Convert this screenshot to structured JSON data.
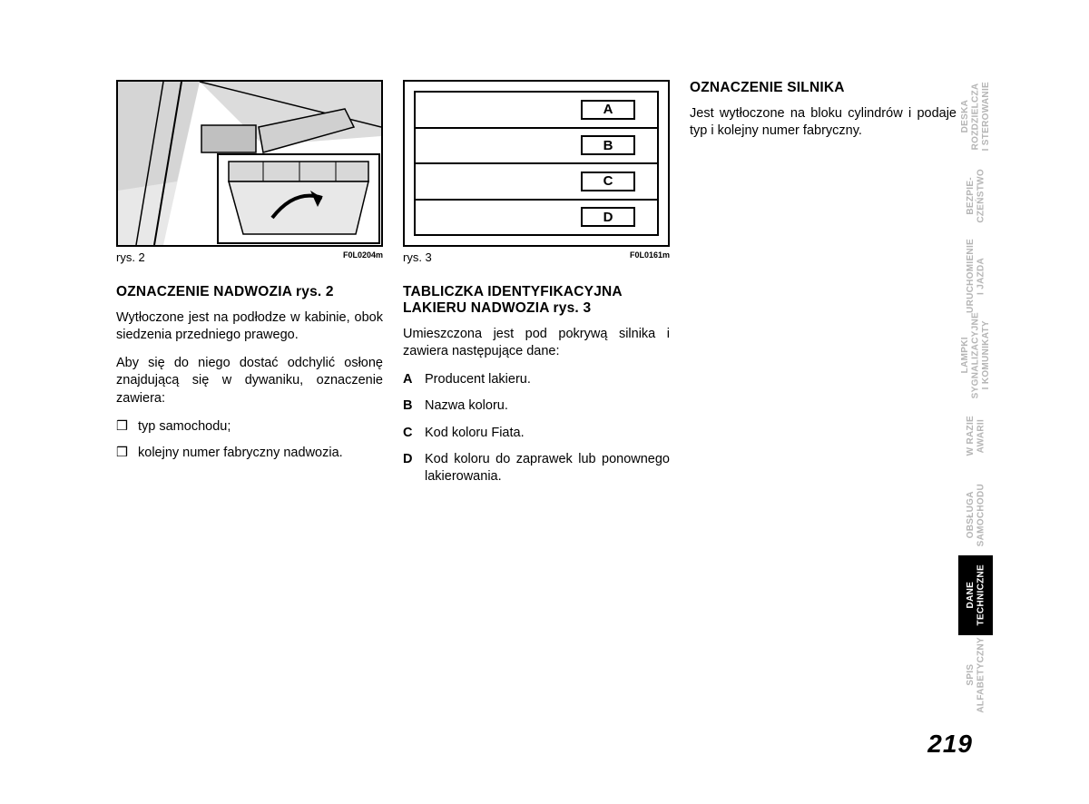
{
  "page_number": "219",
  "fig1": {
    "caption": "rys. 2",
    "code": "F0L0204m"
  },
  "fig2": {
    "caption": "rys. 3",
    "code": "F0L0161m",
    "labels": [
      "A",
      "B",
      "C",
      "D"
    ]
  },
  "col1": {
    "heading": "OZNACZENIE NADWOZIA rys. 2",
    "p1": "Wytłoczone jest na podłodze w kabinie, obok siedzenia przedniego prawego.",
    "p2": "Aby się do niego dostać odchylić osłonę znajdującą się w dywaniku, oznaczenie zawiera:",
    "items": [
      {
        "m": "❒",
        "t": "typ samochodu;"
      },
      {
        "m": "❒",
        "t": "kolejny numer fabryczny nadwozia."
      }
    ]
  },
  "col2": {
    "heading": "TABLICZKA IDENTYFIKACYJNA LAKIERU NADWOZIA rys. 3",
    "p1": "Umieszczona jest pod pokrywą silnika i zawiera następujące dane:",
    "items": [
      {
        "m": "A",
        "t": "Producent lakieru."
      },
      {
        "m": "B",
        "t": "Nazwa koloru."
      },
      {
        "m": "C",
        "t": "Kod koloru Fiata."
      },
      {
        "m": "D",
        "t": "Kod koloru do zaprawek lub ponownego lakierowania."
      }
    ]
  },
  "col3": {
    "heading": "OZNACZENIE SILNIKA",
    "p1": "Jest wytłoczone na bloku cylindrów i podaje typ i kolejny numer fabryczny."
  },
  "tabs": [
    {
      "label": "DESKA\nROZDZIELCZA\nI STEROWANIE",
      "active": false
    },
    {
      "label": "BEZPIE-\nCZEŃSTWO",
      "active": false
    },
    {
      "label": "URUCHOMIENIE\nI JAZDA",
      "active": false
    },
    {
      "label": "LAMPKI\nSYGNALIZACYJNE\nI KOMUNIKATY",
      "active": false
    },
    {
      "label": "W RAZIE\nAWARII",
      "active": false
    },
    {
      "label": "OBSŁUGA\nSAMOCHODU",
      "active": false
    },
    {
      "label": "DANE\nTECHNICZNE",
      "active": true
    },
    {
      "label": "SPIS\nALFABETYCZNY",
      "active": false
    }
  ],
  "colors": {
    "text": "#000000",
    "tab_inactive": "#b5b5b5",
    "tab_active_bg": "#000000",
    "tab_active_fg": "#ffffff",
    "bg": "#ffffff"
  }
}
